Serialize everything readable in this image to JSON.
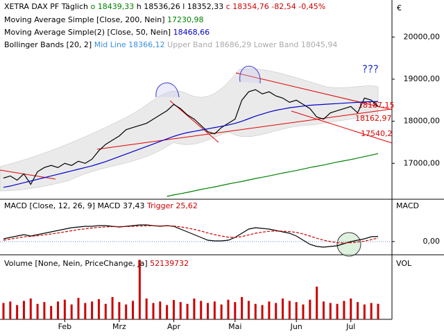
{
  "header": {
    "symbol": "XETRA DAX PF",
    "period": "Täglich",
    "open": "o 18439,33",
    "high": "h 18536,26",
    "low": "l 18352,33",
    "close": "c 18354,76",
    "change": "-82,54",
    "change_pct": "-0,45%"
  },
  "legend": [
    {
      "label": "Moving Average Simple [Close, 200, Nein]",
      "value": "17230,98",
      "color": "#008000"
    },
    {
      "label": "Moving Average Simple(2) [Close, 50, Nein]",
      "value": "18468,66",
      "color": "#0000cc"
    },
    {
      "label": "Bollinger Bands [20, 2]",
      "mid": "Mid Line 18366,12",
      "upper": "Upper Band 18686,29",
      "lower": "Lower Band 18045,94"
    }
  ],
  "currency": "€",
  "annotations": {
    "question": "???",
    "level1": "18187,15",
    "level2": "18162,97",
    "level3": "17540,2"
  },
  "chart_data": [
    {
      "type": "line",
      "categories": [
        null,
        null,
        null,
        null,
        null,
        null,
        null,
        null,
        null,
        "Feb",
        null,
        null,
        null,
        null,
        null,
        null,
        null,
        "Mrz",
        null,
        null,
        null,
        null,
        null,
        null,
        null,
        "Apr",
        null,
        null,
        null,
        null,
        null,
        null,
        null,
        null,
        "Mai",
        null,
        null,
        null,
        null,
        null,
        null,
        null,
        null,
        "Jun",
        null,
        null,
        null,
        null,
        null,
        null,
        null,
        "Jul",
        null,
        null,
        null,
        null
      ],
      "series": [
        {
          "name": "Close",
          "color": "#000000",
          "values": [
            16650,
            16700,
            16600,
            16750,
            16500,
            16800,
            16900,
            16950,
            16900,
            17000,
            16950,
            17050,
            17000,
            17100,
            17300,
            17450,
            17550,
            17650,
            17800,
            17850,
            17900,
            17950,
            18050,
            18150,
            18250,
            18400,
            18300,
            18150,
            18050,
            17900,
            17750,
            17700,
            17850,
            17950,
            18050,
            18500,
            18700,
            18750,
            18650,
            18700,
            18600,
            18550,
            18450,
            18500,
            18400,
            18300,
            18100,
            18050,
            18200,
            18250,
            18300,
            18350,
            18200,
            18550,
            18500,
            18354.76
          ]
        },
        {
          "name": "MA200",
          "color": "#008000",
          "values": [
            null,
            null,
            null,
            null,
            null,
            null,
            null,
            null,
            null,
            null,
            null,
            null,
            null,
            null,
            null,
            null,
            null,
            null,
            null,
            null,
            null,
            null,
            null,
            null,
            16215,
            16250,
            16280,
            16310,
            16345,
            16380,
            16410,
            16440,
            16475,
            16510,
            16540,
            16570,
            16605,
            16640,
            16670,
            16700,
            16735,
            16770,
            16800,
            16830,
            16865,
            16900,
            16930,
            16960,
            16995,
            17030,
            17060,
            17090,
            17125,
            17160,
            17195,
            17230.98
          ]
        },
        {
          "name": "MA50",
          "color": "#0000cc",
          "values": [
            16430,
            16460,
            16500,
            16540,
            16580,
            16620,
            16660,
            16700,
            16740,
            16780,
            16820,
            16860,
            16900,
            16940,
            16990,
            17040,
            17100,
            17160,
            17220,
            17280,
            17340,
            17400,
            17460,
            17520,
            17580,
            17640,
            17690,
            17730,
            17760,
            17790,
            17820,
            17850,
            17880,
            17910,
            17950,
            18000,
            18060,
            18120,
            18170,
            18220,
            18260,
            18290,
            18320,
            18340,
            18360,
            18380,
            18390,
            18400,
            18410,
            18420,
            18430,
            18440,
            18450,
            18460,
            18465,
            18468.66
          ]
        }
      ],
      "ylim": [
        16180,
        20880
      ],
      "yticks": [
        {
          "value": 17000,
          "label": "17000,00"
        },
        {
          "value": 18000,
          "label": "18000,00"
        },
        {
          "value": 19000,
          "label": "19000,00"
        },
        {
          "value": 20000,
          "label": "20000,00"
        }
      ]
    },
    {
      "type": "line",
      "title": "MACD [Close, 12, 26, 9]",
      "axis_label": "MACD",
      "series": [
        {
          "name": "MACD 37,43",
          "color": "#000000",
          "values": [
            20,
            30,
            40,
            50,
            40,
            50,
            60,
            70,
            80,
            90,
            100,
            105,
            110,
            110,
            115,
            115,
            110,
            105,
            110,
            115,
            120,
            120,
            115,
            110,
            115,
            110,
            90,
            70,
            50,
            30,
            10,
            5,
            5,
            10,
            30,
            60,
            90,
            100,
            95,
            90,
            80,
            70,
            60,
            40,
            10,
            -20,
            -35,
            -40,
            -35,
            -30,
            -15,
            0,
            10,
            20,
            35,
            37.43
          ]
        },
        {
          "name": "Trigger 25,62",
          "color": "#cc0000",
          "values": [
            10,
            18,
            26,
            34,
            38,
            42,
            48,
            55,
            62,
            70,
            78,
            86,
            92,
            98,
            102,
            106,
            108,
            108,
            108,
            110,
            112,
            114,
            114,
            113,
            113,
            112,
            106,
            98,
            88,
            76,
            62,
            50,
            40,
            32,
            30,
            36,
            48,
            60,
            68,
            74,
            76,
            75,
            72,
            66,
            55,
            40,
            24,
            10,
            0,
            -8,
            -10,
            -8,
            -3,
            3,
            14,
            25.62
          ]
        }
      ],
      "ylim": [
        -85,
        300
      ],
      "yticks": [
        {
          "value": 0,
          "label": "0,00"
        }
      ]
    },
    {
      "type": "bar",
      "title": "Volume [None, Nein, PriceChange, Ja]",
      "last": "52139732",
      "axis_label": "VOL",
      "color": "#cc0000",
      "values": [
        55000000,
        60000000,
        48000000,
        62000000,
        70000000,
        52000000,
        58000000,
        45000000,
        60000000,
        66000000,
        50000000,
        72000000,
        55000000,
        60000000,
        68000000,
        52000000,
        75000000,
        58000000,
        50000000,
        62000000,
        200000000,
        70000000,
        55000000,
        60000000,
        48000000,
        65000000,
        58000000,
        52000000,
        70000000,
        62000000,
        55000000,
        60000000,
        50000000,
        66000000,
        58000000,
        75000000,
        62000000,
        52000000,
        48000000,
        60000000,
        55000000,
        70000000,
        62000000,
        58000000,
        50000000,
        66000000,
        110000000,
        60000000,
        55000000,
        52000000,
        62000000,
        70000000,
        58000000,
        50000000,
        55000000,
        52139732
      ],
      "ylim": [
        0,
        210000000
      ]
    }
  ]
}
